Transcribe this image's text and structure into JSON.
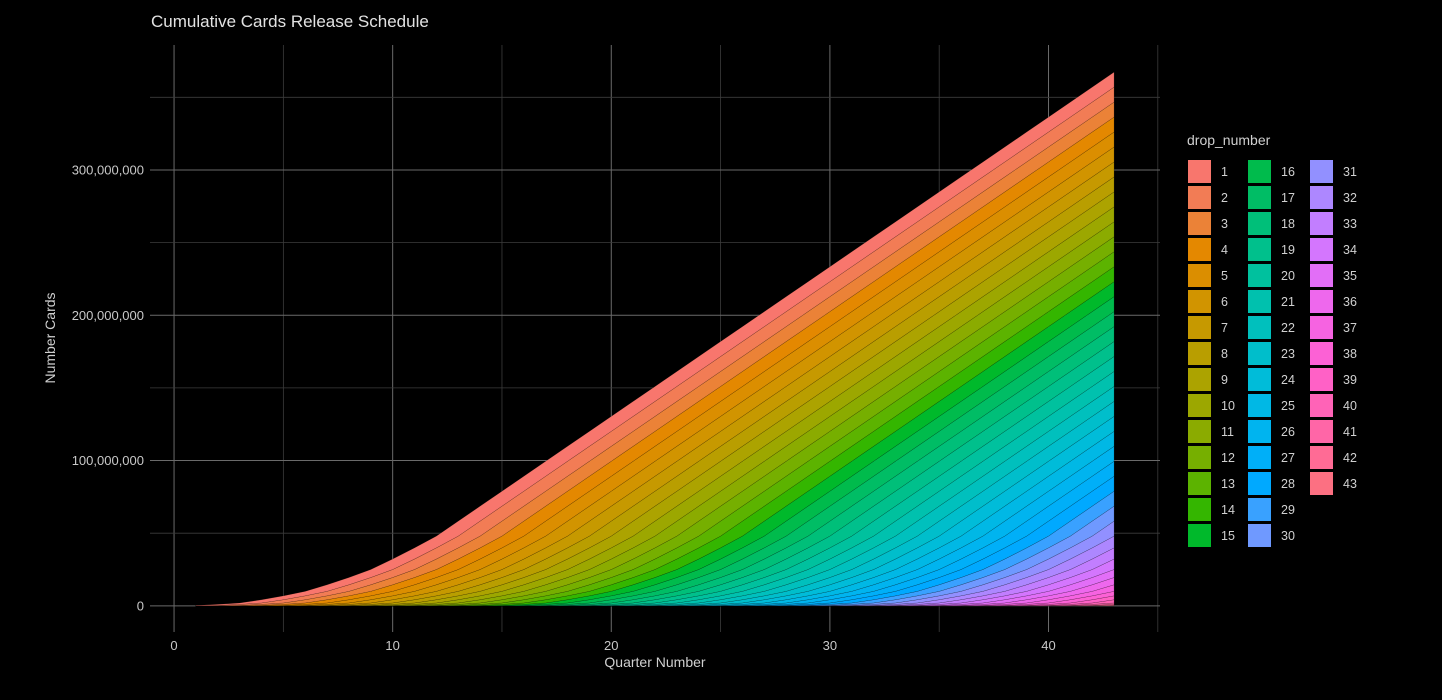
{
  "chart_data": {
    "type": "area",
    "stacked": true,
    "title": "Cumulative Cards Release Schedule",
    "xlabel": "Quarter Number",
    "ylabel": "Number Cards",
    "xlim": [
      -1.1,
      45.1
    ],
    "ylim": [
      -18000000,
      386000000
    ],
    "x_ticks": [
      0,
      10,
      20,
      30,
      40
    ],
    "y_ticks": [
      0,
      100000000,
      200000000,
      300000000
    ],
    "y_tick_labels": [
      "0",
      "100,000,000",
      "200,000,000",
      "300,000,000"
    ],
    "grid": true,
    "legend": {
      "title": "drop_number",
      "placement": "right",
      "columns": 3,
      "rows": 15
    },
    "quarters": {
      "first": 1,
      "last": 43
    },
    "drops": [
      "1",
      "2",
      "3",
      "4",
      "5",
      "6",
      "7",
      "8",
      "9",
      "10",
      "11",
      "12",
      "13",
      "14",
      "15",
      "16",
      "17",
      "18",
      "19",
      "20",
      "21",
      "22",
      "23",
      "24",
      "25",
      "26",
      "27",
      "28",
      "29",
      "30",
      "31",
      "32",
      "33",
      "34",
      "35",
      "36",
      "37",
      "38",
      "39",
      "40",
      "41",
      "42",
      "43"
    ],
    "drop_release_quarter": [
      1,
      2,
      3,
      4,
      5,
      6,
      7,
      8,
      9,
      10,
      11,
      12,
      13,
      14,
      15,
      16,
      17,
      18,
      19,
      20,
      21,
      22,
      23,
      24,
      25,
      26,
      27,
      28,
      29,
      30,
      31,
      32,
      33,
      34,
      35,
      36,
      37,
      38,
      39,
      40,
      41,
      42,
      43
    ],
    "cards_per_drop_by_quarters_since_release": [
      300000,
      700000,
      1000000,
      2200000,
      2700000,
      3100000,
      4500000,
      5000000,
      5500000,
      7200000,
      7700000,
      8100000,
      10300000
    ],
    "cards_per_drop_after_profile": 10300000,
    "colors": {
      "palette": "hue",
      "hue_start": 15,
      "chroma": 100,
      "luminance": 65,
      "background": "#000000",
      "grid": "#5a5a5a",
      "text": "#d0d0d0"
    }
  }
}
